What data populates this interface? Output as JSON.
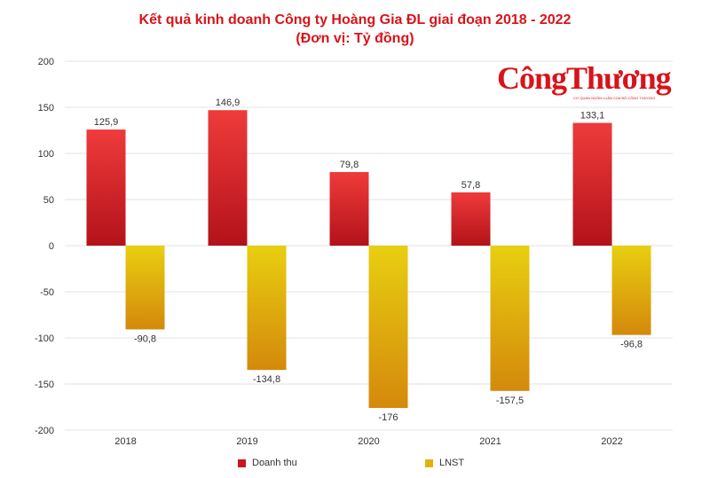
{
  "header": {
    "title_line1": "Kết quả kinh doanh Công ty Hoàng Gia ĐL giai đoạn 2018 - 2022",
    "title_line2": "(Đơn vị: Tỷ đồng)"
  },
  "logo": {
    "text": "CôngThương",
    "subtitle": "CƠ QUAN NGÔN LUẬN CỦA BỘ CÔNG THƯƠNG"
  },
  "colors": {
    "title": "#d7141a",
    "revenue_top": "#ef3b3b",
    "revenue_bottom": "#b3121a",
    "profit_top": "#e8cf10",
    "profit_bottom": "#d4890c",
    "grid": "#e3e3e3"
  },
  "chart_data": {
    "type": "bar",
    "title": "Kết quả kinh doanh Công ty Hoàng Gia ĐL giai đoạn 2018 - 2022",
    "subtitle": "(Đơn vị: Tỷ đồng)",
    "categories": [
      "2018",
      "2019",
      "2020",
      "2021",
      "2022"
    ],
    "series": [
      {
        "name": "Doanh thu",
        "values": [
          125.9,
          146.9,
          79.8,
          57.8,
          133.1
        ],
        "labels": [
          "125,9",
          "146,9",
          "79,8",
          "57,8",
          "133,1"
        ]
      },
      {
        "name": "LNST",
        "values": [
          -90.8,
          -134.8,
          -176,
          -157.5,
          -96.8
        ],
        "labels": [
          "-90,8",
          "-134,8",
          "-176",
          "-157,5",
          "-96,8"
        ]
      }
    ],
    "ylim": [
      -200,
      200
    ],
    "yticks": [
      200,
      150,
      100,
      50,
      0,
      -50,
      -100,
      -150,
      -200
    ],
    "grid": true,
    "legend": "bottom-left"
  }
}
